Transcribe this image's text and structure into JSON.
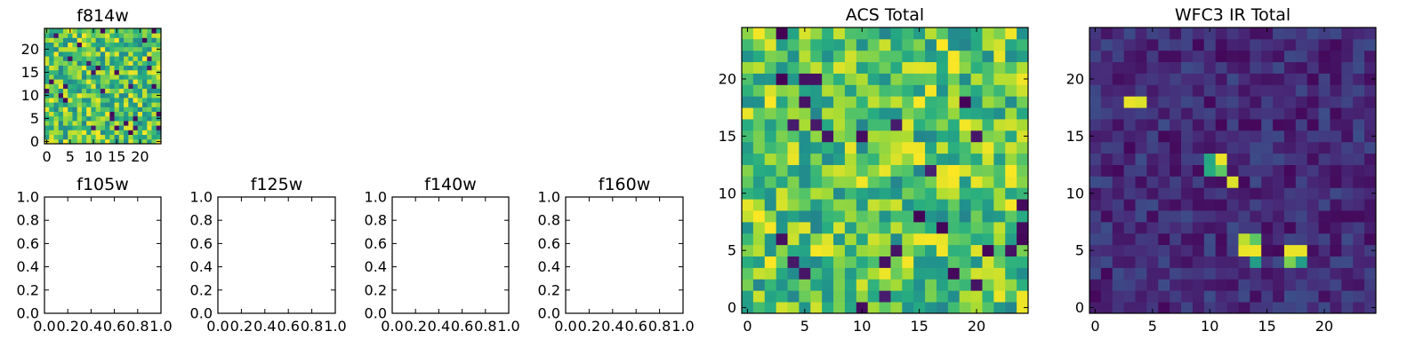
{
  "chart_data": [
    {
      "type": "heatmap",
      "title": "f814w",
      "xticks": [
        "0",
        "5",
        "10",
        "15",
        "20"
      ],
      "yticks": [
        "0",
        "5",
        "10",
        "15",
        "20"
      ],
      "xlim": [
        -0.5,
        24.5
      ],
      "ylim": [
        -0.5,
        24.5
      ],
      "grid": "off",
      "colormap": "viridis",
      "seed": 7,
      "hot_pixels": []
    },
    {
      "type": "heatmap",
      "title": "f105w",
      "xticks": [
        "0.0",
        "0.2",
        "0.4",
        "0.6",
        "0.8",
        "1.0"
      ],
      "yticks": [
        "0.0",
        "0.2",
        "0.4",
        "0.6",
        "0.8",
        "1.0"
      ],
      "xlim": [
        0,
        1
      ],
      "ylim": [
        0,
        1
      ],
      "values": []
    },
    {
      "type": "heatmap",
      "title": "f125w",
      "xticks": [
        "0.0",
        "0.2",
        "0.4",
        "0.6",
        "0.8",
        "1.0"
      ],
      "yticks": [
        "0.0",
        "0.2",
        "0.4",
        "0.6",
        "0.8",
        "1.0"
      ],
      "xlim": [
        0,
        1
      ],
      "ylim": [
        0,
        1
      ],
      "values": []
    },
    {
      "type": "heatmap",
      "title": "f140w",
      "xticks": [
        "0.0",
        "0.2",
        "0.4",
        "0.6",
        "0.8",
        "1.0"
      ],
      "yticks": [
        "0.0",
        "0.2",
        "0.4",
        "0.6",
        "0.8",
        "1.0"
      ],
      "xlim": [
        0,
        1
      ],
      "ylim": [
        0,
        1
      ],
      "values": []
    },
    {
      "type": "heatmap",
      "title": "f160w",
      "xticks": [
        "0.0",
        "0.2",
        "0.4",
        "0.6",
        "0.8",
        "1.0"
      ],
      "yticks": [
        "0.0",
        "0.2",
        "0.4",
        "0.6",
        "0.8",
        "1.0"
      ],
      "xlim": [
        0,
        1
      ],
      "ylim": [
        0,
        1
      ],
      "values": []
    },
    {
      "type": "heatmap",
      "title": "ACS Total",
      "xticks": [
        "0",
        "5",
        "10",
        "15",
        "20"
      ],
      "yticks": [
        "0",
        "5",
        "10",
        "15",
        "20"
      ],
      "xlim": [
        -0.5,
        24.5
      ],
      "ylim": [
        -0.5,
        24.5
      ],
      "grid": "off",
      "colormap": "viridis",
      "seed": 21,
      "hot_pixels": []
    },
    {
      "type": "heatmap",
      "title": "WFC3 IR Total",
      "xticks": [
        "0",
        "5",
        "10",
        "15",
        "20"
      ],
      "yticks": [
        "0",
        "5",
        "10",
        "15",
        "20"
      ],
      "xlim": [
        -0.5,
        24.5
      ],
      "ylim": [
        -0.5,
        24.5
      ],
      "grid": "off",
      "colormap": "viridis",
      "seed": 99,
      "hot_pixels": [
        {
          "x": 3,
          "y": 18,
          "level": 0.97
        },
        {
          "x": 4,
          "y": 18,
          "level": 0.95
        },
        {
          "x": 10,
          "y": 13,
          "level": 0.6
        },
        {
          "x": 10,
          "y": 12,
          "level": 0.62
        },
        {
          "x": 11,
          "y": 13,
          "level": 0.97
        },
        {
          "x": 11,
          "y": 12,
          "level": 0.75
        },
        {
          "x": 12,
          "y": 11,
          "level": 0.95
        },
        {
          "x": 13,
          "y": 5,
          "level": 0.97
        },
        {
          "x": 13,
          "y": 6,
          "level": 0.9
        },
        {
          "x": 14,
          "y": 5,
          "level": 0.98
        },
        {
          "x": 14,
          "y": 6,
          "level": 0.75
        },
        {
          "x": 14,
          "y": 4,
          "level": 0.55
        },
        {
          "x": 17,
          "y": 5,
          "level": 0.97
        },
        {
          "x": 18,
          "y": 5,
          "level": 0.97
        },
        {
          "x": 17,
          "y": 4,
          "level": 0.8
        },
        {
          "x": 18,
          "y": 4,
          "level": 0.55
        }
      ]
    }
  ]
}
